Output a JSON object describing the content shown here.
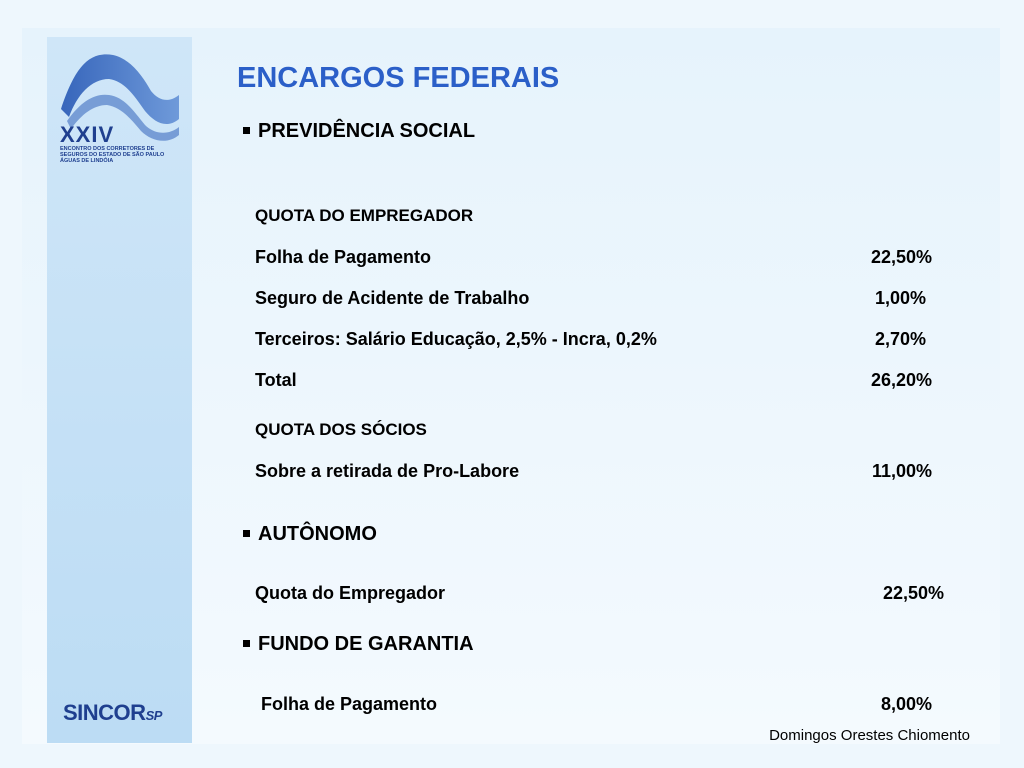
{
  "title": "ENCARGOS FEDERAIS",
  "logo": {
    "numeral": "XXIV",
    "caption": [
      "ENCONTRO DOS CORRETORES DE",
      "SEGUROS DO ESTADO DE SÃO PAULO",
      "ÁGUAS DE LINDÓIA"
    ],
    "brand": "SINCOR",
    "brand_suffix": "SP"
  },
  "sections": {
    "previdencia": {
      "heading": "PREVIDÊNCIA SOCIAL",
      "empregador": {
        "subheading": "QUOTA DO EMPREGADOR",
        "rows": [
          {
            "label": "Folha de Pagamento",
            "value": "22,50%"
          },
          {
            "label": "Seguro de Acidente de Trabalho",
            "value": "1,00%"
          },
          {
            "label": "Terceiros: Salário Educação, 2,5% - Incra, 0,2%",
            "value": "2,70%"
          },
          {
            "label": "Total",
            "value": "26,20%"
          }
        ]
      },
      "socios": {
        "subheading": "QUOTA DOS SÓCIOS",
        "rows": [
          {
            "label": "Sobre a retirada de Pro-Labore",
            "value": "11,00%"
          }
        ]
      }
    },
    "autonomo": {
      "heading": "AUTÔNOMO",
      "rows": [
        {
          "label": "Quota do Empregador",
          "value": "22,50%"
        }
      ]
    },
    "fundo": {
      "heading": "FUNDO DE GARANTIA",
      "rows": [
        {
          "label": "Folha de Pagamento",
          "value": "8,00%"
        }
      ]
    }
  },
  "author": "Domingos Orestes Chiomento"
}
